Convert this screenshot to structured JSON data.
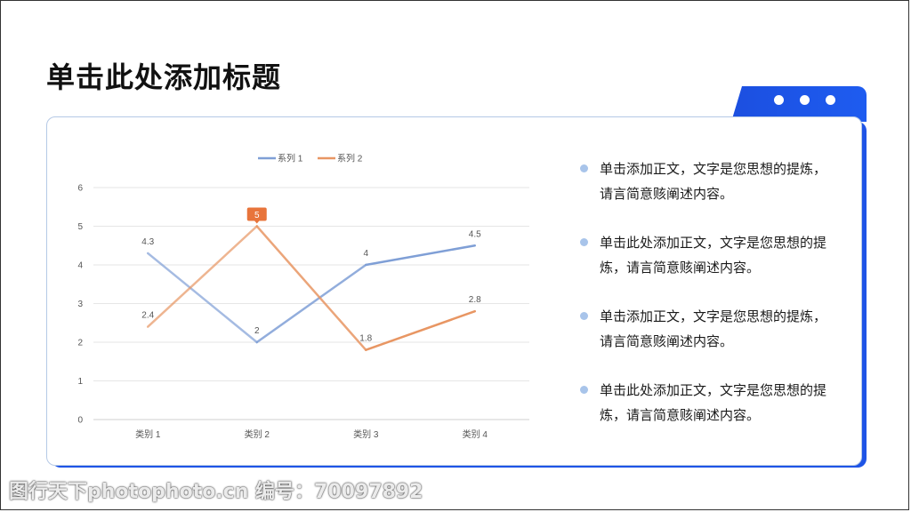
{
  "slide": {
    "title": "单击此处添加标题"
  },
  "colors": {
    "accent": "#1e54e6",
    "series1": "#7f9fd6",
    "series2": "#e89663"
  },
  "chart_data": {
    "type": "line",
    "categories": [
      "类别 1",
      "类别 2",
      "类别 3",
      "类别 4"
    ],
    "series": [
      {
        "name": "系列 1",
        "values": [
          4.3,
          2,
          4,
          4.5
        ],
        "labels": [
          "4.3",
          "2",
          "4",
          "4.5"
        ]
      },
      {
        "name": "系列 2",
        "values": [
          2.4,
          5,
          1.8,
          2.8
        ],
        "labels": [
          "2.4",
          "5",
          "1.8",
          "2.8"
        ]
      }
    ],
    "ylim": [
      0,
      6
    ],
    "yticks": [
      "0",
      "1",
      "2",
      "3",
      "4",
      "5",
      "6"
    ],
    "grid": true,
    "legend": "top-center",
    "highlighted_point": {
      "series": 1,
      "index": 1
    }
  },
  "bullets": [
    {
      "text": "单击添加正文，文字是您思想的提炼，请言简意赅阐述内容。"
    },
    {
      "text": "单击此处添加正文，文字是您思想的提炼，请言简意赅阐述内容。"
    },
    {
      "text": "单击添加正文，文字是您思想的提炼，请言简意赅阐述内容。"
    },
    {
      "text": "单击此处添加正文，文字是您思想的提炼，请言简意赅阐述内容。"
    }
  ],
  "watermark": "图行天下photophoto.cn 编号：70097892"
}
